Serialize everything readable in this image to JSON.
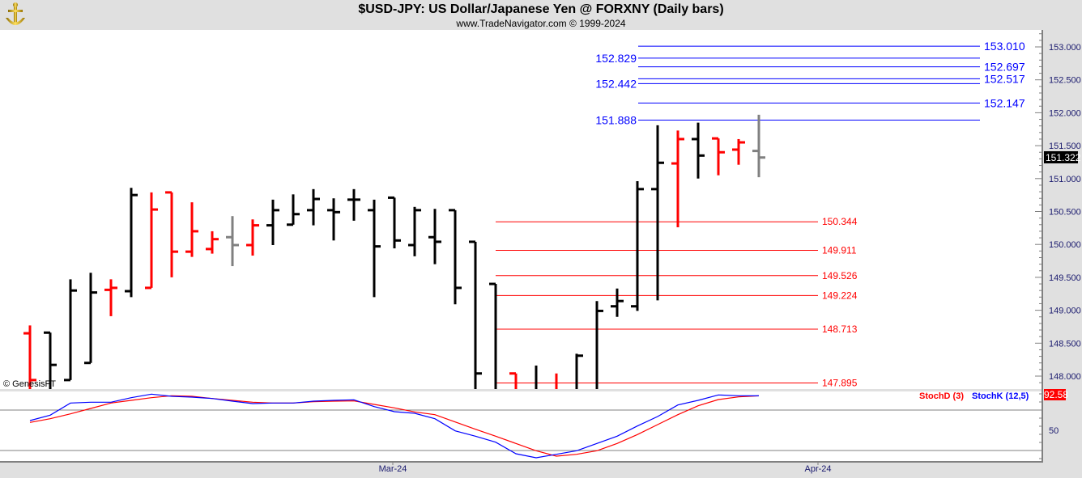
{
  "header": {
    "title": "$USD-JPY:  US Dollar/Japanese Yen @ FORXNY  (Daily bars)",
    "subtitle": "www.TradeNavigator.com © 1999-2024",
    "logo_icon": "gold-anchor-logo"
  },
  "copyright": "© GenesisFT",
  "colors": {
    "up": "#000000",
    "down": "#ff0000",
    "current": "#808080",
    "blue_level": "#0000ff",
    "red_level": "#ff0000",
    "stoch_k": "#0000ff",
    "stoch_d": "#ff0000",
    "background": "#ffffff",
    "frame": "#e0e0e0"
  },
  "price_axis": {
    "ticks": [
      "153.000",
      "152.500",
      "152.000",
      "151.500",
      "151.000",
      "150.500",
      "150.000",
      "149.500",
      "149.000",
      "148.500",
      "148.000"
    ],
    "current_price": "151.322"
  },
  "blue_levels": [
    {
      "value": "153.010",
      "label_side": "right"
    },
    {
      "value": "152.829",
      "label_side": "left"
    },
    {
      "value": "152.697",
      "label_side": "right"
    },
    {
      "value": "152.517",
      "label_side": "right"
    },
    {
      "value": "152.442",
      "label_side": "left"
    },
    {
      "value": "152.147",
      "label_side": "right"
    },
    {
      "value": "151.888",
      "label_side": "left"
    }
  ],
  "red_levels": [
    "150.344",
    "149.911",
    "149.526",
    "149.224",
    "148.713",
    "147.895"
  ],
  "date_axis": {
    "labels": [
      {
        "text": "Mar-24",
        "bar_index": 18
      },
      {
        "text": "Apr-24",
        "bar_index": 39
      }
    ]
  },
  "chart_data": [
    {
      "type": "ohlc",
      "title": "$USD-JPY:  US Dollar/Japanese Yen @ FORXNY  (Daily bars)",
      "ylim": [
        147.8,
        153.3
      ],
      "bars": [
        {
          "o": 148.65,
          "h": 148.77,
          "l": 147.6,
          "c": 147.94,
          "color": "down"
        },
        {
          "o": 148.66,
          "h": 148.66,
          "l": 147.6,
          "c": 148.17,
          "color": "up"
        },
        {
          "o": 147.94,
          "h": 149.47,
          "l": 147.94,
          "c": 149.3,
          "color": "up"
        },
        {
          "o": 148.2,
          "h": 149.57,
          "l": 148.2,
          "c": 149.27,
          "color": "up"
        },
        {
          "o": 149.31,
          "h": 149.47,
          "l": 148.91,
          "c": 149.34,
          "color": "down"
        },
        {
          "o": 149.29,
          "h": 150.86,
          "l": 149.2,
          "c": 150.75,
          "color": "up"
        },
        {
          "o": 149.34,
          "h": 150.79,
          "l": 149.34,
          "c": 150.53,
          "color": "down"
        },
        {
          "o": 150.79,
          "h": 150.79,
          "l": 149.5,
          "c": 149.89,
          "color": "down"
        },
        {
          "o": 149.89,
          "h": 150.64,
          "l": 149.81,
          "c": 150.2,
          "color": "down"
        },
        {
          "o": 149.93,
          "h": 150.2,
          "l": 149.86,
          "c": 150.08,
          "color": "down"
        },
        {
          "o": 150.11,
          "h": 150.43,
          "l": 149.67,
          "c": 149.99,
          "color": "current"
        },
        {
          "o": 149.99,
          "h": 150.38,
          "l": 149.83,
          "c": 150.29,
          "color": "down"
        },
        {
          "o": 150.29,
          "h": 150.68,
          "l": 149.99,
          "c": 150.52,
          "color": "up"
        },
        {
          "o": 150.3,
          "h": 150.76,
          "l": 150.3,
          "c": 150.46,
          "color": "up"
        },
        {
          "o": 150.52,
          "h": 150.84,
          "l": 150.29,
          "c": 150.69,
          "color": "up"
        },
        {
          "o": 150.52,
          "h": 150.7,
          "l": 150.06,
          "c": 150.49,
          "color": "up"
        },
        {
          "o": 150.68,
          "h": 150.84,
          "l": 150.36,
          "c": 150.68,
          "color": "up"
        },
        {
          "o": 150.52,
          "h": 150.68,
          "l": 149.2,
          "c": 149.97,
          "color": "up"
        },
        {
          "o": 150.71,
          "h": 150.71,
          "l": 149.94,
          "c": 150.06,
          "color": "up"
        },
        {
          "o": 149.99,
          "h": 150.57,
          "l": 149.82,
          "c": 150.52,
          "color": "up"
        },
        {
          "o": 150.11,
          "h": 150.54,
          "l": 149.7,
          "c": 150.04,
          "color": "up"
        },
        {
          "o": 150.52,
          "h": 150.52,
          "l": 149.09,
          "c": 149.34,
          "color": "up"
        },
        {
          "o": 150.04,
          "h": 150.04,
          "l": 147.6,
          "c": 148.04,
          "color": "up"
        },
        {
          "o": 149.4,
          "h": 149.4,
          "l": 147.5,
          "c": 147.7,
          "color": "up"
        },
        {
          "o": 148.04,
          "h": 148.04,
          "l": 147.5,
          "c": 147.7,
          "color": "down"
        },
        {
          "o": 147.7,
          "h": 148.16,
          "l": 147.5,
          "c": 147.75,
          "color": "up"
        },
        {
          "o": 147.75,
          "h": 148.04,
          "l": 147.5,
          "c": 147.7,
          "color": "down"
        },
        {
          "o": 147.7,
          "h": 148.34,
          "l": 147.5,
          "c": 148.31,
          "color": "up"
        },
        {
          "o": 147.7,
          "h": 149.14,
          "l": 147.5,
          "c": 148.99,
          "color": "up"
        },
        {
          "o": 149.06,
          "h": 149.33,
          "l": 148.9,
          "c": 149.14,
          "color": "up"
        },
        {
          "o": 149.06,
          "h": 150.96,
          "l": 148.99,
          "c": 150.84,
          "color": "up"
        },
        {
          "o": 150.84,
          "h": 151.81,
          "l": 149.15,
          "c": 151.24,
          "color": "up"
        },
        {
          "o": 151.23,
          "h": 151.73,
          "l": 150.26,
          "c": 151.6,
          "color": "down"
        },
        {
          "o": 151.6,
          "h": 151.85,
          "l": 151.0,
          "c": 151.35,
          "color": "up"
        },
        {
          "o": 151.61,
          "h": 151.61,
          "l": 151.05,
          "c": 151.4,
          "color": "down"
        },
        {
          "o": 151.44,
          "h": 151.6,
          "l": 151.21,
          "c": 151.55,
          "color": "down"
        },
        {
          "o": 151.42,
          "h": 151.97,
          "l": 151.02,
          "c": 151.32,
          "color": "current"
        }
      ]
    },
    {
      "type": "line",
      "ylim": [
        7,
        107
      ],
      "yticks": [
        "50"
      ],
      "reference_lines": [
        75,
        25
      ],
      "last_value": "92.58",
      "series": [
        {
          "name": "StochD (3)",
          "color": "#ff0000",
          "values": [
            59.7,
            64.3,
            70.3,
            77,
            83.7,
            87,
            90.3,
            92.7,
            92,
            89.3,
            87,
            84.7,
            83.7,
            83.7,
            85.3,
            86,
            86.3,
            82,
            77.7,
            72.7,
            69.3,
            60.3,
            51.3,
            42.7,
            33.7,
            24.7,
            18,
            20.3,
            24.7,
            33.7,
            44.7,
            57,
            69.3,
            80.3,
            88,
            91.3,
            92.58
          ]
        },
        {
          "name": "StochK (12,5)",
          "color": "#0000ff",
          "values": [
            62,
            68.7,
            83.7,
            84.7,
            84.7,
            90.3,
            94.7,
            92,
            91,
            89.3,
            86,
            83,
            83.7,
            83.7,
            86,
            87,
            87.7,
            79.3,
            73,
            71,
            64.3,
            49.3,
            42.7,
            35.3,
            21,
            16,
            20.3,
            24.7,
            33.7,
            42.7,
            55.3,
            67,
            81.3,
            87,
            93.7,
            92.7,
            92.6
          ]
        }
      ]
    }
  ]
}
